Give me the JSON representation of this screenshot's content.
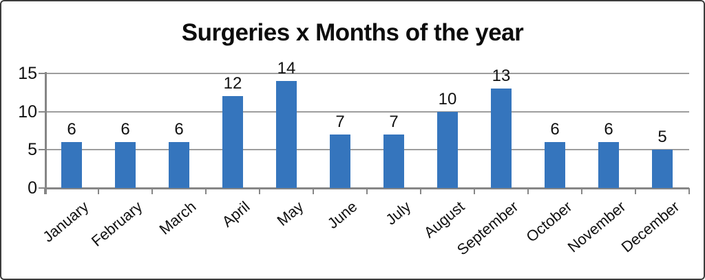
{
  "title": "Surgeries x Months of the year",
  "chart_data": {
    "type": "bar",
    "title": "Surgeries x Months of the year",
    "categories": [
      "January",
      "February",
      "March",
      "April",
      "May",
      "June",
      "July",
      "August",
      "September",
      "October",
      "November",
      "December"
    ],
    "values": [
      6,
      6,
      6,
      12,
      14,
      7,
      7,
      10,
      13,
      6,
      6,
      5
    ],
    "xlabel": "",
    "ylabel": "",
    "ylim": [
      0,
      15
    ],
    "yticks": [
      0,
      5,
      10,
      15
    ],
    "grid": true,
    "legend": false,
    "data_labels": true
  },
  "colors": {
    "bar": "#3575bd",
    "gridline": "#9d9d9d",
    "axis": "#868686",
    "text": "#111111",
    "background": "#ffffff",
    "frame_border": "#3c3c3c"
  }
}
